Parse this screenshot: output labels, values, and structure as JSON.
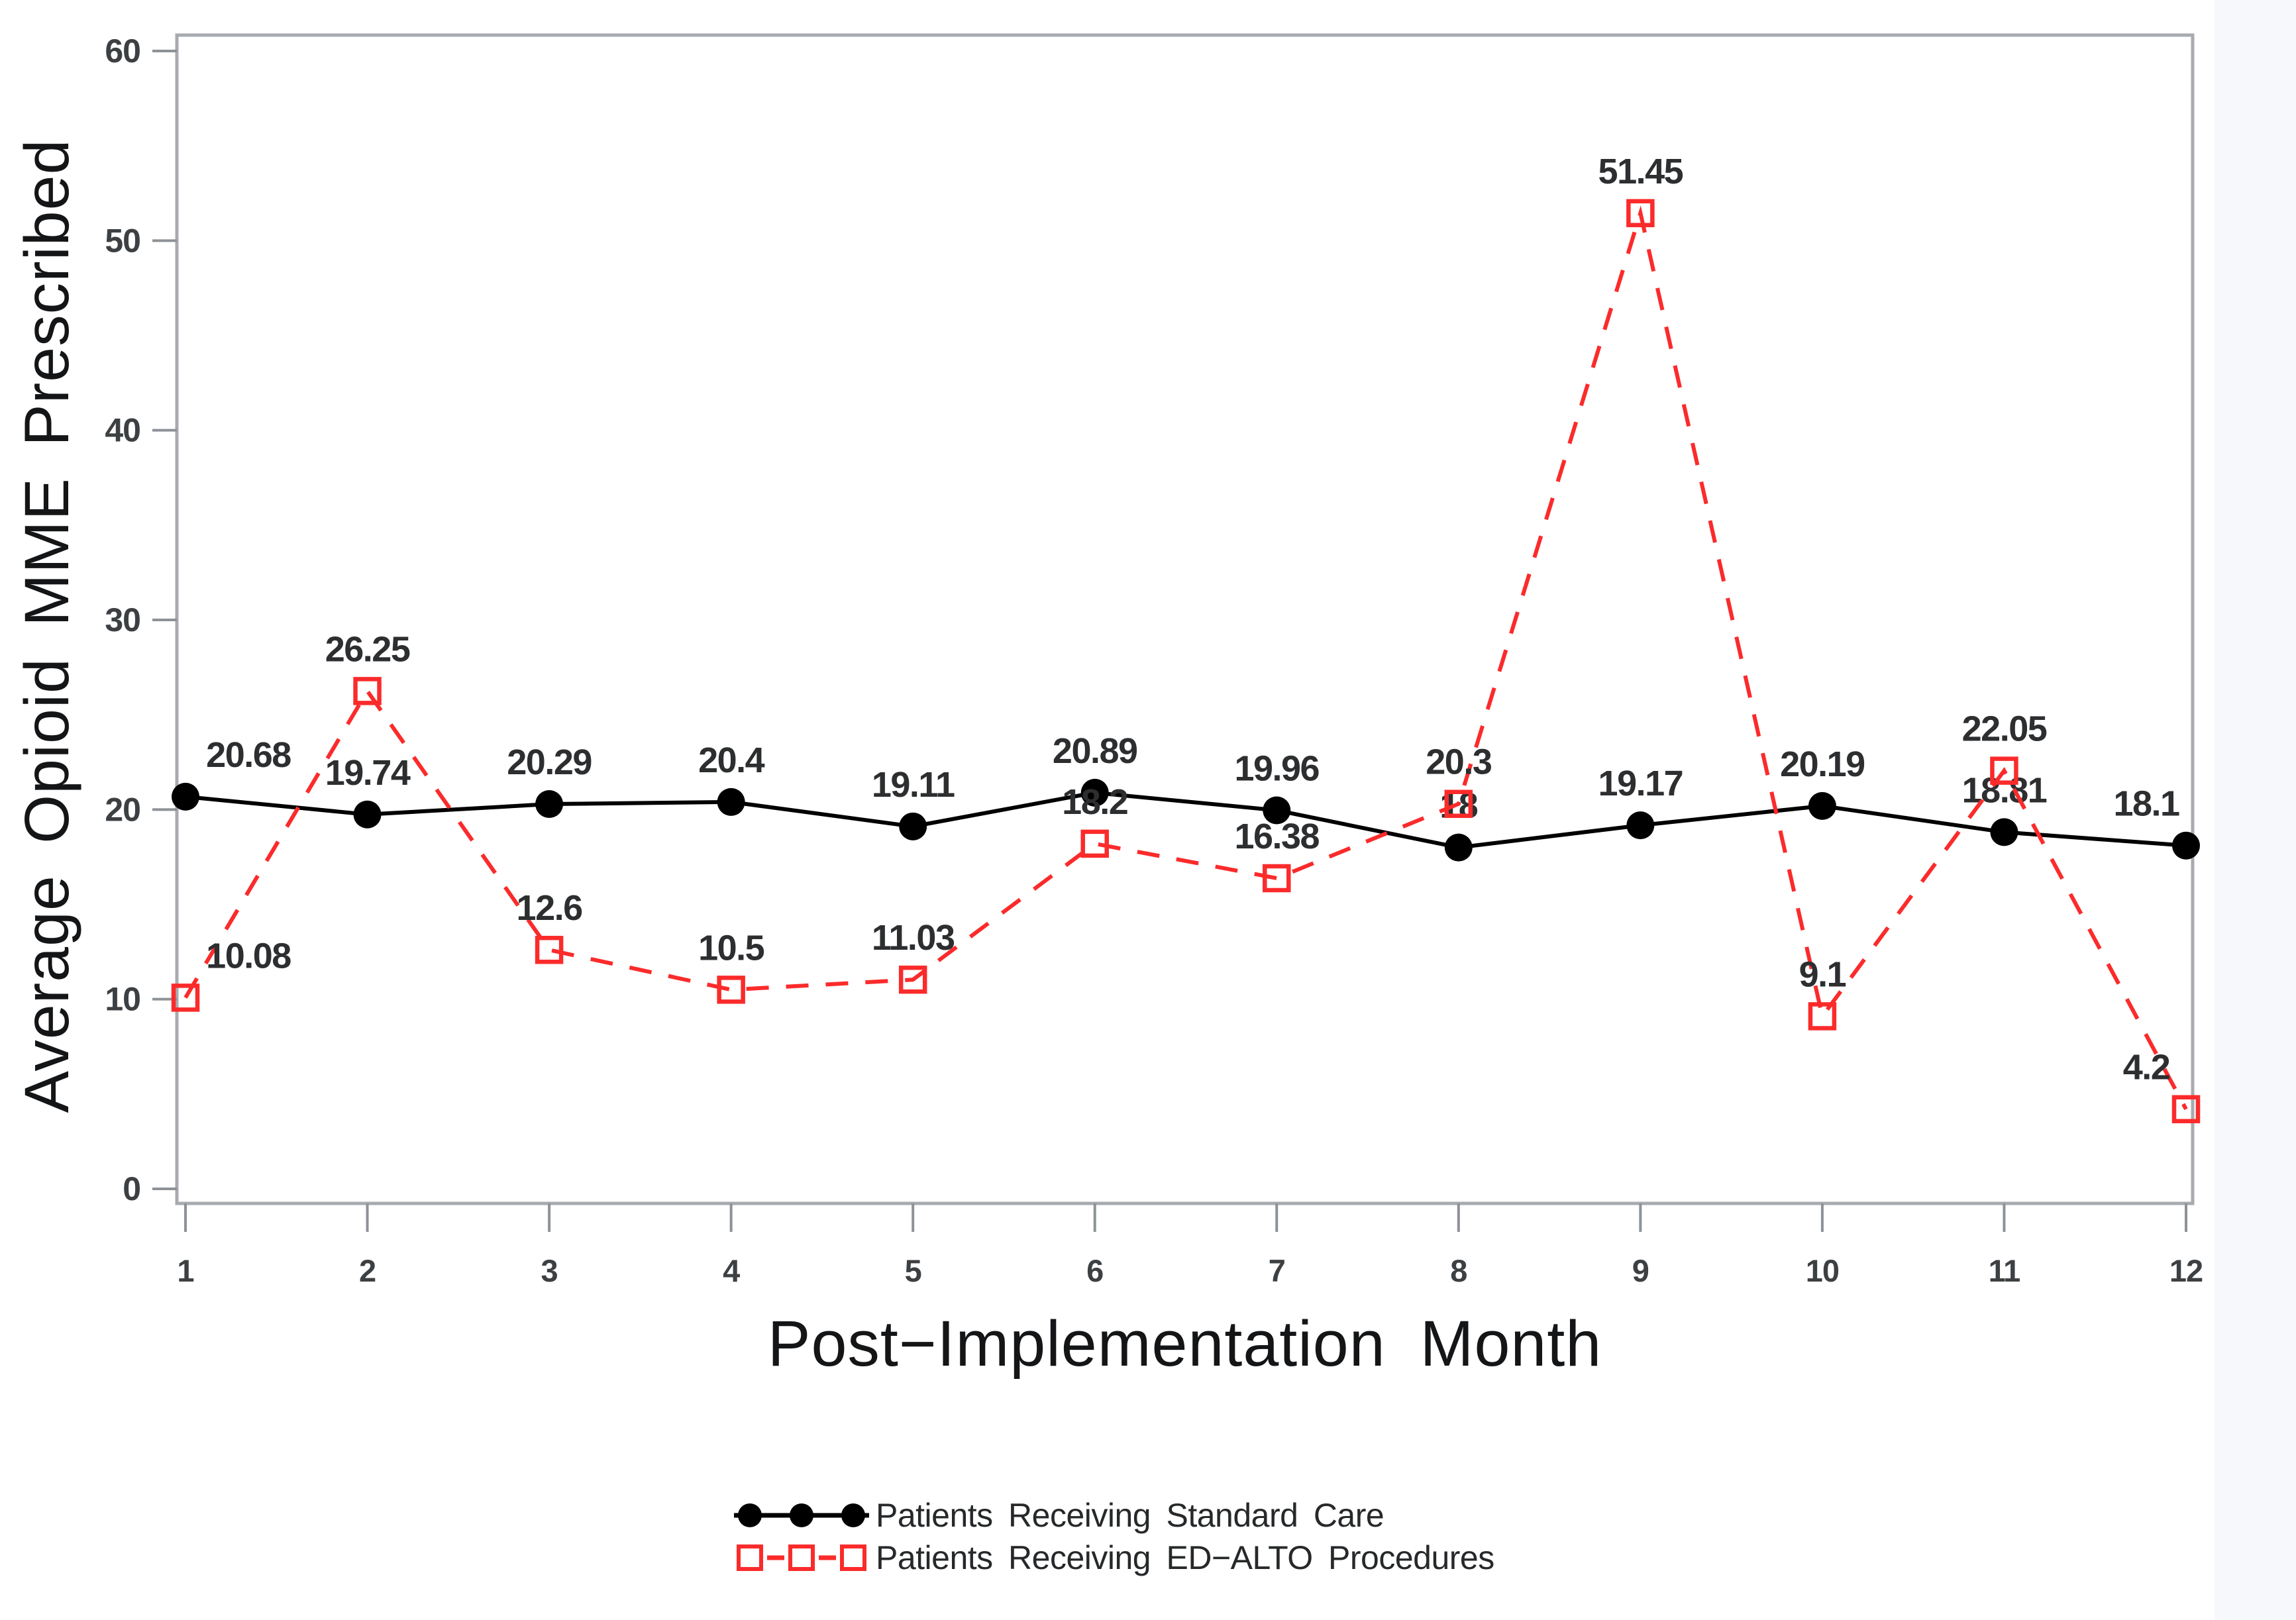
{
  "chart_data": {
    "type": "line",
    "title": "",
    "xlabel": "Post−Implementation Month",
    "ylabel": "Average Opioid MME Prescribed",
    "x": [
      1,
      2,
      3,
      4,
      5,
      6,
      7,
      8,
      9,
      10,
      11,
      12
    ],
    "ylim": [
      0,
      60
    ],
    "yticks": [
      0,
      10,
      20,
      30,
      40,
      50,
      60
    ],
    "grid": false,
    "legend_position": "bottom-center",
    "series": [
      {
        "name": "Patients Receiving Standard Care",
        "color": "#000000",
        "line_style": "solid",
        "marker": "filled-circle",
        "values": [
          20.68,
          19.74,
          20.29,
          20.4,
          19.11,
          20.89,
          19.96,
          18,
          19.17,
          20.19,
          18.81,
          18.1
        ]
      },
      {
        "name": "Patients Receiving ED−ALTO Procedures",
        "color": "#fb2b2b",
        "line_style": "dashed",
        "marker": "open-square",
        "values": [
          10.08,
          26.25,
          12.6,
          10.5,
          11.03,
          18.2,
          16.38,
          20.3,
          51.45,
          9.1,
          22.05,
          4.2
        ]
      }
    ]
  },
  "colors": {
    "frame": "#a7abb0",
    "tick": "#8d9297",
    "tick_label": "#3d4043",
    "data_label": "#2c2e30",
    "axis_title": "#141517",
    "legend_text": "#26282a",
    "background": "#ffffff",
    "scan_edge_strip": "#f6f8fc"
  }
}
